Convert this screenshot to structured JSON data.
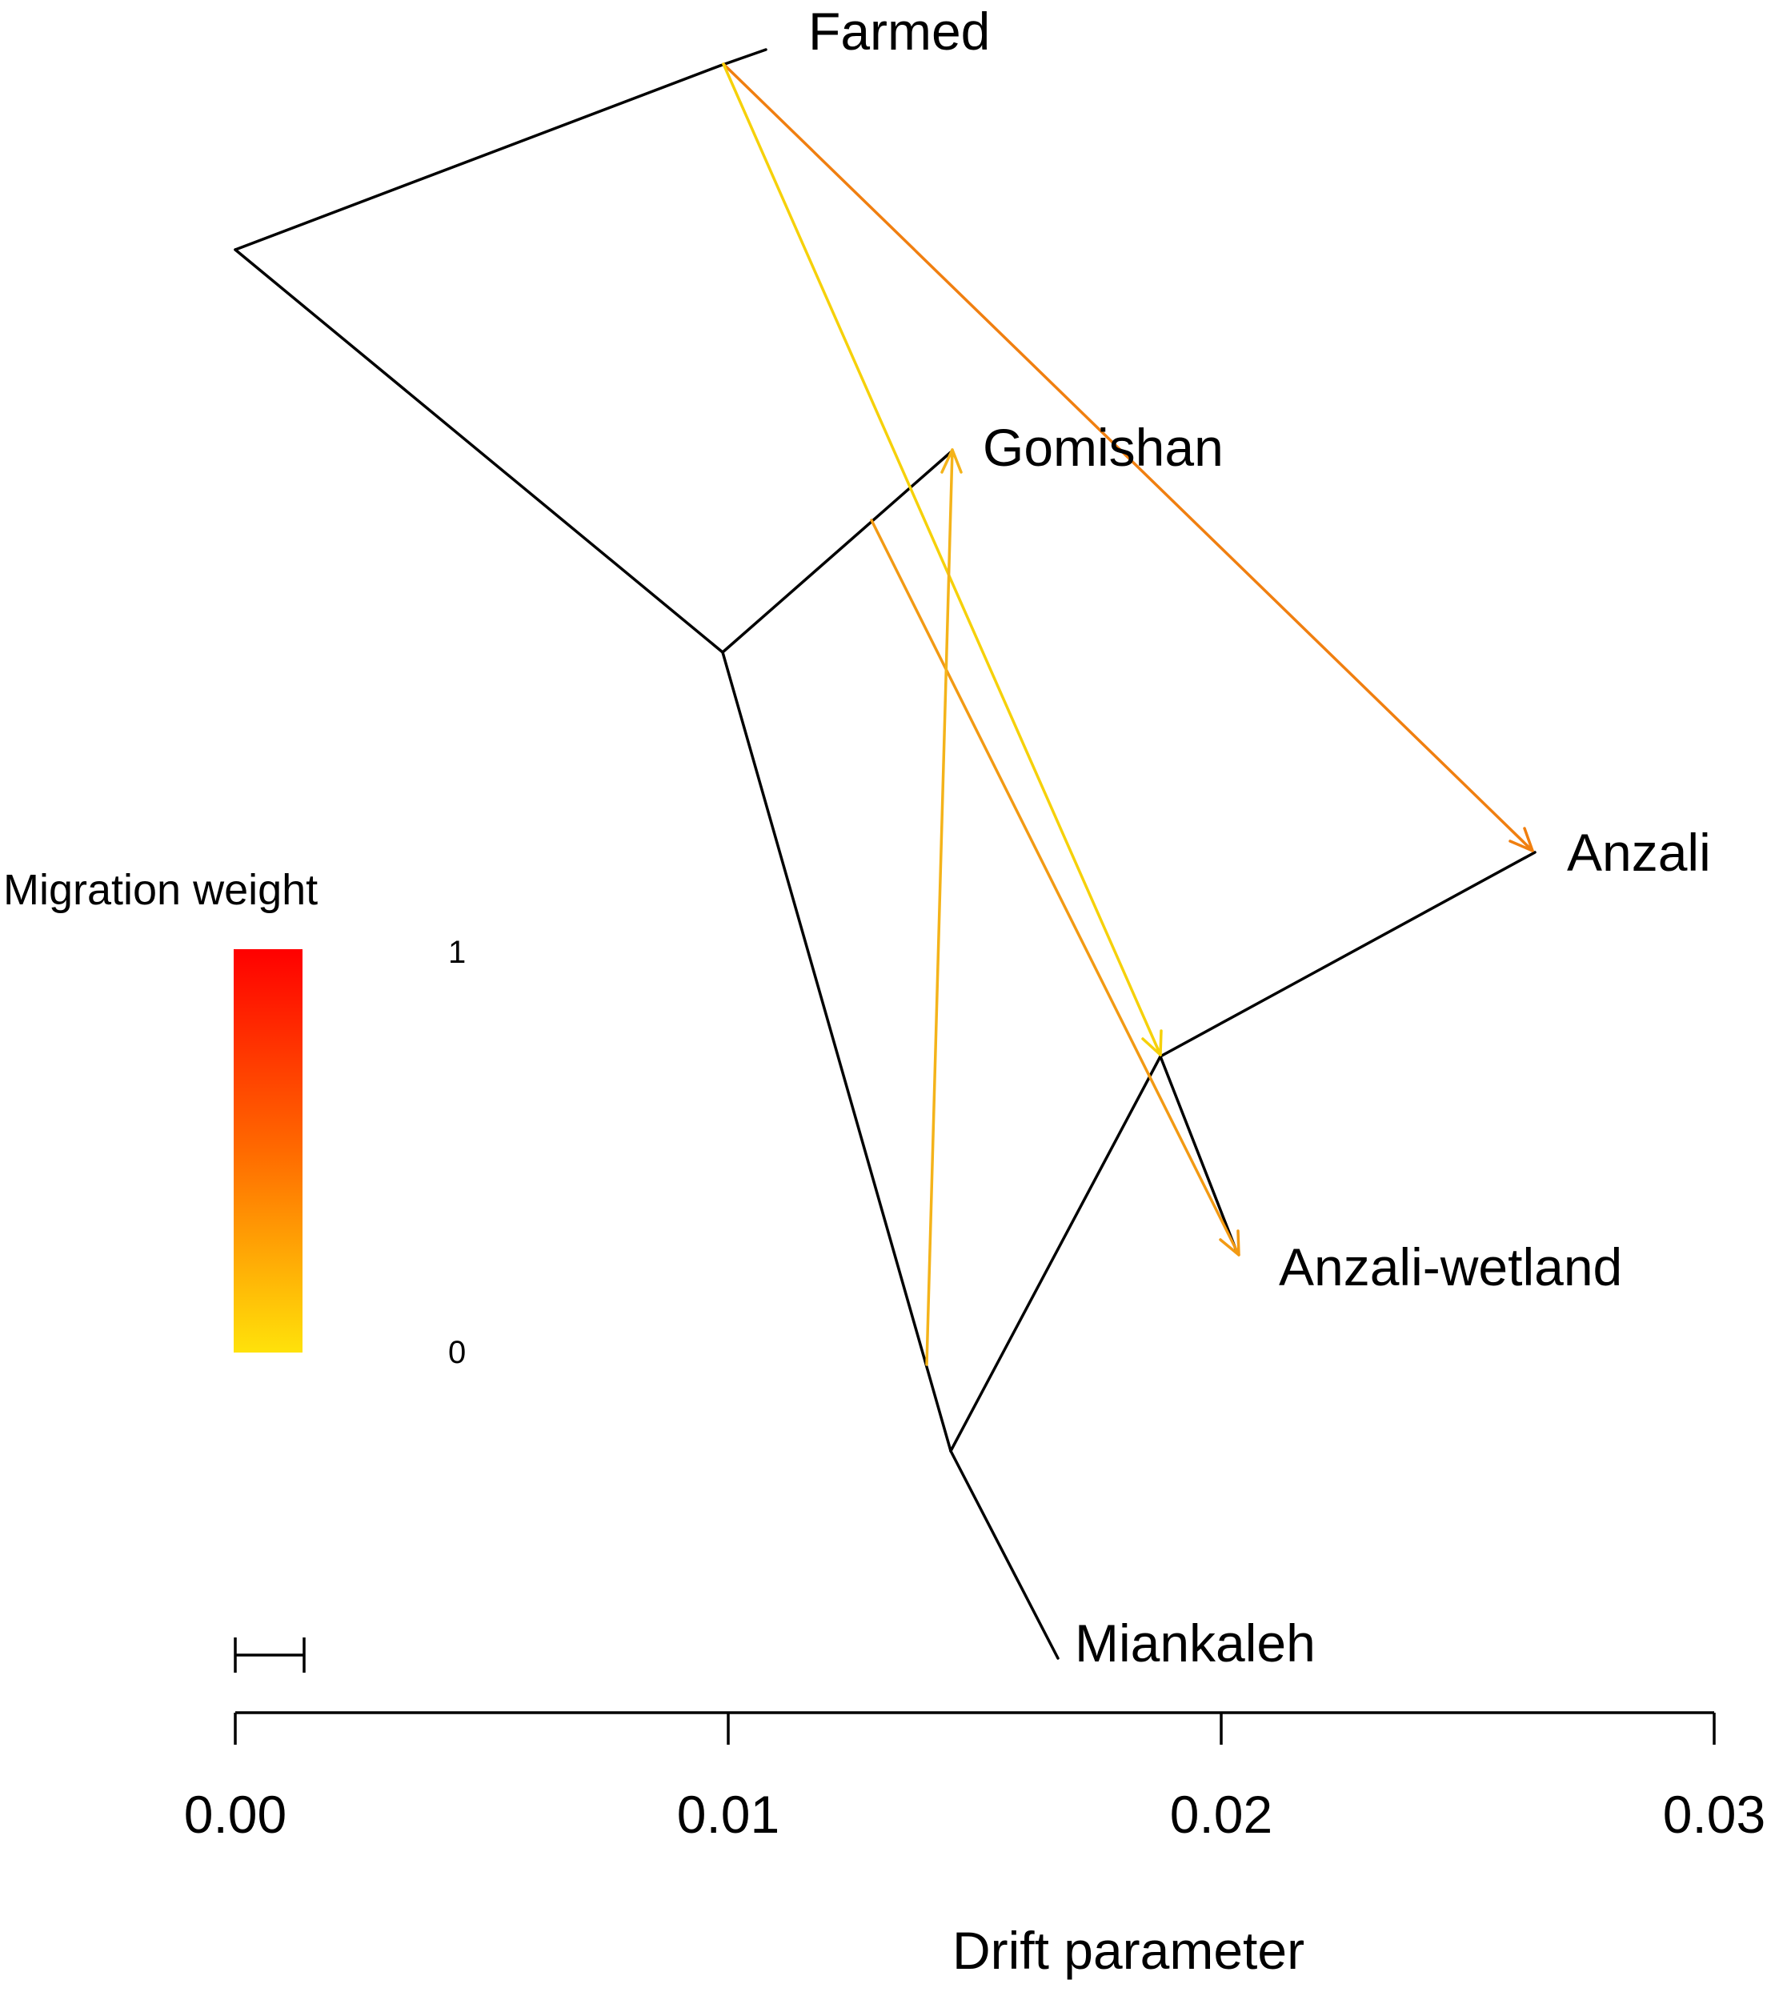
{
  "tree": {
    "tips": [
      {
        "id": "farmed",
        "label": "Farmed"
      },
      {
        "id": "gomishan",
        "label": "Gomishan"
      },
      {
        "id": "anzali",
        "label": "Anzali"
      },
      {
        "id": "anzali_wetland",
        "label": "Anzali-wetland"
      },
      {
        "id": "miankaleh",
        "label": "Miankaleh"
      }
    ],
    "migration_edges": [
      {
        "from": "Farmed",
        "to": "Anzali",
        "weight": 0.6,
        "color": "#f07f10"
      },
      {
        "from": "Farmed",
        "to": "Anzali-wetland node",
        "weight": 0.1,
        "color": "#f6d10a"
      },
      {
        "from": "Gomishan branch",
        "to": "Anzali-wetland",
        "weight": 0.4,
        "color": "#f29a14"
      },
      {
        "from": "Miankaleh branch",
        "to": "Gomishan",
        "weight": 0.3,
        "color": "#f4b31a"
      }
    ]
  },
  "legend": {
    "title": "Migration weight",
    "max_label": "1",
    "min_label": "0",
    "color_high": "#ff0000",
    "color_mid": "#ff6a00",
    "color_low": "#ffe20a"
  },
  "axis": {
    "label": "Drift parameter",
    "ticks": [
      "0.00",
      "0.01",
      "0.02",
      "0.03"
    ]
  }
}
